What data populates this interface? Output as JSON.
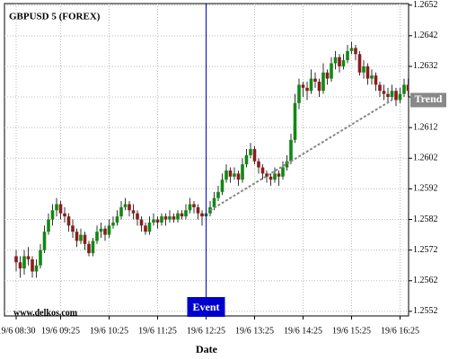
{
  "chart_data": {
    "type": "candlestick",
    "title": "GBPUSD 5 (FOREX)",
    "watermark": "www.delkos.com",
    "x_label": "Date",
    "categories": [
      "19/6 08:30",
      null,
      null,
      null,
      null,
      null,
      null,
      null,
      null,
      null,
      null,
      "19/6 09:25",
      null,
      null,
      null,
      null,
      null,
      null,
      null,
      null,
      null,
      null,
      null,
      "19/6 10:25",
      null,
      null,
      null,
      null,
      null,
      null,
      null,
      null,
      null,
      null,
      null,
      "19/6 11:25",
      null,
      null,
      null,
      null,
      null,
      null,
      null,
      null,
      null,
      null,
      null,
      "19/6 12:25",
      null,
      null,
      null,
      null,
      null,
      null,
      null,
      null,
      null,
      null,
      null,
      "19/6 13:25",
      null,
      null,
      null,
      null,
      null,
      null,
      null,
      null,
      null,
      null,
      null,
      "19/6 14:25",
      null,
      null,
      null,
      null,
      null,
      null,
      null,
      null,
      null,
      null,
      null,
      "19/6 15:25",
      null,
      null,
      null,
      null,
      null,
      null,
      null,
      null,
      null,
      null,
      null,
      "19/6 16:25",
      null,
      null
    ],
    "open": [
      1.257,
      1.2568,
      1.2566,
      1.257,
      1.2569,
      1.2565,
      1.2567,
      1.2572,
      1.2578,
      1.2582,
      1.2585,
      1.2587,
      1.2584,
      1.2583,
      1.258,
      1.2578,
      1.2575,
      1.2577,
      1.2574,
      1.2571,
      1.2575,
      1.2578,
      1.2579,
      1.2577,
      1.258,
      1.2581,
      1.2583,
      1.2586,
      1.2587,
      1.2585,
      1.2584,
      1.2582,
      1.258,
      1.2578,
      1.2581,
      1.2582,
      1.2581,
      1.2583,
      1.2582,
      1.2583,
      1.2582,
      1.2584,
      1.2583,
      1.2585,
      1.2587,
      1.2586,
      1.2584,
      1.2583,
      1.2584,
      1.2586,
      1.2589,
      1.2591,
      1.2595,
      1.2598,
      1.2596,
      1.2597,
      1.2595,
      1.26,
      1.2603,
      1.2605,
      1.2601,
      1.2599,
      1.2597,
      1.2596,
      1.2595,
      1.2597,
      1.2596,
      1.2599,
      1.2601,
      1.2608,
      1.262,
      1.2626,
      1.2625,
      1.2624,
      1.2628,
      1.2627,
      1.2624,
      1.263,
      1.2628,
      1.2633,
      1.2635,
      1.2632,
      1.2634,
      1.2637,
      1.2638,
      1.2636,
      1.263,
      1.2632,
      1.2628,
      1.2629,
      1.2626,
      1.2624,
      1.2623,
      1.2622,
      1.2624,
      1.2621,
      1.2623,
      1.2626
    ],
    "high": [
      1.2572,
      1.257,
      1.2572,
      1.2573,
      1.257,
      1.2569,
      1.2574,
      1.258,
      1.2584,
      1.2587,
      1.2589,
      1.2588,
      1.2586,
      1.2584,
      1.2582,
      1.2579,
      1.2579,
      1.2578,
      1.2575,
      1.2576,
      1.258,
      1.2581,
      1.258,
      1.2582,
      1.2583,
      1.2585,
      1.2588,
      1.2589,
      1.2588,
      1.2587,
      1.2585,
      1.2583,
      1.2581,
      1.2583,
      1.2584,
      1.2583,
      1.2584,
      1.2584,
      1.2585,
      1.2584,
      1.2585,
      1.2585,
      1.2587,
      1.2589,
      1.2588,
      1.2587,
      1.2585,
      1.2585,
      1.2588,
      1.2591,
      1.2593,
      1.2597,
      1.26,
      1.2599,
      1.2599,
      1.2598,
      1.2602,
      1.2605,
      1.2607,
      1.2606,
      1.2602,
      1.26,
      1.2598,
      1.2597,
      1.2599,
      1.2598,
      1.2601,
      1.2603,
      1.261,
      1.2623,
      1.2628,
      1.2627,
      1.2627,
      1.2631,
      1.263,
      1.2628,
      1.2633,
      1.2631,
      1.2635,
      1.2637,
      1.2636,
      1.2636,
      1.2639,
      1.264,
      1.2639,
      1.2637,
      1.2634,
      1.2633,
      1.2631,
      1.263,
      1.2627,
      1.2626,
      1.2625,
      1.2626,
      1.2625,
      1.2625,
      1.2628,
      1.2628
    ],
    "low": [
      1.2565,
      1.2563,
      1.2564,
      1.2567,
      1.2563,
      1.2563,
      1.2566,
      1.2571,
      1.2577,
      1.258,
      1.2583,
      1.2582,
      1.2581,
      1.2578,
      1.2576,
      1.2573,
      1.2574,
      1.2572,
      1.257,
      1.257,
      1.2574,
      1.2576,
      1.2575,
      1.2576,
      1.2579,
      1.258,
      1.2582,
      1.2585,
      1.2583,
      1.2582,
      1.258,
      1.2578,
      1.2577,
      1.2577,
      1.258,
      1.2579,
      1.258,
      1.258,
      1.2581,
      1.2581,
      1.2581,
      1.2582,
      1.2582,
      1.2584,
      1.2584,
      1.2582,
      1.258,
      1.2582,
      1.2583,
      1.2585,
      1.2588,
      1.259,
      1.2594,
      1.2594,
      1.2595,
      1.2593,
      1.2594,
      1.2599,
      1.2602,
      1.26,
      1.2597,
      1.2595,
      1.2594,
      1.2593,
      1.2594,
      1.2593,
      1.2595,
      1.2598,
      1.26,
      1.2607,
      1.2618,
      1.2622,
      1.2621,
      1.2623,
      1.2625,
      1.2622,
      1.2623,
      1.2626,
      1.2627,
      1.2631,
      1.263,
      1.2631,
      1.2633,
      1.2636,
      1.2634,
      1.2629,
      1.2628,
      1.2626,
      1.2626,
      1.2624,
      1.2622,
      1.2621,
      1.262,
      1.2621,
      1.2619,
      1.262,
      1.2622,
      1.2622
    ],
    "close": [
      1.2568,
      1.2566,
      1.257,
      1.2569,
      1.2565,
      1.2567,
      1.2572,
      1.2578,
      1.2582,
      1.2585,
      1.2587,
      1.2584,
      1.2583,
      1.258,
      1.2578,
      1.2575,
      1.2577,
      1.2574,
      1.2571,
      1.2575,
      1.2578,
      1.2579,
      1.2577,
      1.258,
      1.2581,
      1.2583,
      1.2586,
      1.2587,
      1.2585,
      1.2584,
      1.2582,
      1.258,
      1.2578,
      1.2581,
      1.2582,
      1.2581,
      1.2583,
      1.2582,
      1.2583,
      1.2582,
      1.2584,
      1.2583,
      1.2585,
      1.2587,
      1.2586,
      1.2584,
      1.2583,
      1.2584,
      1.2586,
      1.2589,
      1.2591,
      1.2595,
      1.2598,
      1.2596,
      1.2597,
      1.2595,
      1.26,
      1.2603,
      1.2605,
      1.2601,
      1.2599,
      1.2597,
      1.2596,
      1.2595,
      1.2597,
      1.2596,
      1.2599,
      1.2601,
      1.2608,
      1.262,
      1.2626,
      1.2625,
      1.2624,
      1.2628,
      1.2627,
      1.2624,
      1.263,
      1.2628,
      1.2633,
      1.2635,
      1.2632,
      1.2634,
      1.2637,
      1.2638,
      1.2636,
      1.263,
      1.2632,
      1.2628,
      1.2629,
      1.2626,
      1.2624,
      1.2623,
      1.2622,
      1.2624,
      1.2621,
      1.2623,
      1.2626,
      1.2624
    ],
    "up_color": "#118811",
    "down_color": "#8b1c1c",
    "wick_color": "#333333",
    "trend": {
      "name": "Trend",
      "color": "#888888",
      "values": [
        null,
        null,
        null,
        null,
        null,
        null,
        null,
        null,
        null,
        null,
        null,
        null,
        null,
        null,
        null,
        null,
        null,
        null,
        null,
        null,
        null,
        null,
        null,
        null,
        null,
        null,
        null,
        null,
        null,
        null,
        null,
        null,
        null,
        null,
        null,
        null,
        null,
        null,
        null,
        null,
        null,
        null,
        null,
        null,
        null,
        null,
        null,
        null,
        1.2585,
        1.25858,
        1.25866,
        1.25874,
        1.25882,
        1.2589,
        1.25898,
        1.25906,
        1.25914,
        1.25922,
        1.2593,
        1.25938,
        1.25946,
        1.25954,
        1.25962,
        1.2597,
        1.25978,
        1.25986,
        1.25994,
        1.26002,
        1.2601,
        1.26018,
        1.26026,
        1.26034,
        1.26042,
        1.2605,
        1.26058,
        1.26066,
        1.26074,
        1.26082,
        1.2609,
        1.26098,
        1.26106,
        1.26114,
        1.26122,
        1.2613,
        1.26138,
        1.26146,
        1.26154,
        1.26162,
        1.2617,
        1.26178,
        1.26186,
        1.26194,
        1.26202,
        1.2621,
        null,
        null,
        null,
        null
      ]
    },
    "event": {
      "label": "Event",
      "at": "19/6 12:25",
      "color": "#0000cc"
    },
    "ylim": [
      1.25505,
      1.26525
    ],
    "yticks": [
      1.2552,
      1.2562,
      1.2572,
      1.2582,
      1.2592,
      1.2602,
      1.2612,
      1.2622,
      1.2632,
      1.2642,
      1.2652
    ],
    "grid": true
  }
}
